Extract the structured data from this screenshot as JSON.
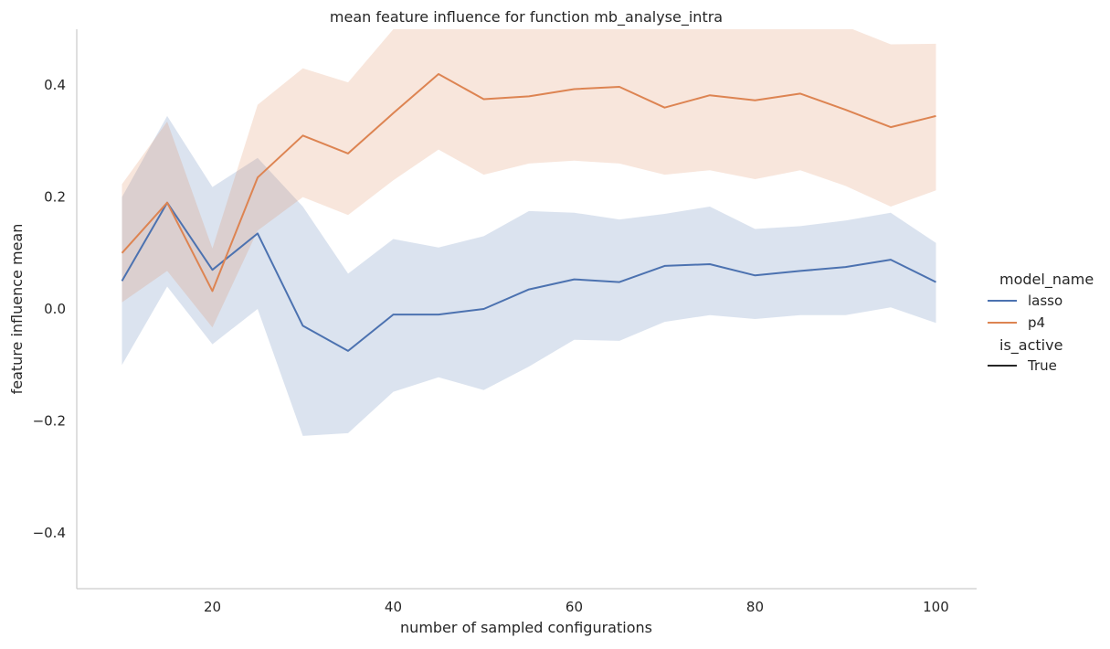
{
  "chart_data": {
    "type": "line",
    "title": "mean feature influence for function mb_analyse_intra",
    "xlabel": "number of sampled configurations",
    "ylabel": "feature influence mean",
    "xlim": [
      5,
      104.5
    ],
    "ylim": [
      -0.5,
      0.5
    ],
    "xticks": [
      20,
      40,
      60,
      80,
      100
    ],
    "yticks": [
      -0.4,
      -0.2,
      0.0,
      0.2,
      0.4
    ],
    "ytick_labels": [
      "−0.4",
      "−0.2",
      "0.0",
      "0.2",
      "0.4"
    ],
    "grid": false,
    "x": [
      10,
      15,
      20,
      25,
      30,
      35,
      40,
      45,
      50,
      55,
      60,
      65,
      70,
      75,
      80,
      85,
      90,
      95,
      100
    ],
    "series": [
      {
        "name": "lasso",
        "color": "#4c72b0",
        "values": [
          0.05,
          0.19,
          0.07,
          0.135,
          -0.03,
          -0.075,
          -0.01,
          -0.01,
          0.0,
          0.035,
          0.053,
          0.048,
          0.077,
          0.08,
          0.06,
          0.068,
          0.075,
          0.088,
          0.048
        ],
        "ci_lower": [
          -0.1,
          0.04,
          -0.063,
          0.0,
          -0.227,
          -0.222,
          -0.148,
          -0.122,
          -0.145,
          -0.103,
          -0.055,
          -0.057,
          -0.023,
          -0.011,
          -0.018,
          -0.011,
          -0.011,
          0.003,
          -0.025
        ],
        "ci_upper": [
          0.2,
          0.345,
          0.218,
          0.27,
          0.183,
          0.063,
          0.125,
          0.11,
          0.13,
          0.175,
          0.172,
          0.16,
          0.17,
          0.183,
          0.143,
          0.148,
          0.158,
          0.172,
          0.118
        ]
      },
      {
        "name": "p4",
        "color": "#dd8452",
        "values": [
          0.1,
          0.19,
          0.032,
          0.235,
          0.31,
          0.278,
          0.35,
          0.42,
          0.375,
          0.38,
          0.393,
          0.397,
          0.36,
          0.382,
          0.373,
          0.385,
          0.356,
          0.325,
          0.345
        ],
        "ci_lower": [
          0.012,
          0.068,
          -0.033,
          0.14,
          0.2,
          0.168,
          0.23,
          0.285,
          0.24,
          0.26,
          0.265,
          0.26,
          0.24,
          0.248,
          0.232,
          0.248,
          0.22,
          0.183,
          0.212
        ],
        "ci_upper": [
          0.223,
          0.335,
          0.108,
          0.365,
          0.43,
          0.405,
          0.5,
          0.53,
          0.52,
          0.53,
          0.53,
          0.525,
          0.525,
          0.525,
          0.525,
          0.525,
          0.505,
          0.473,
          0.474
        ]
      }
    ],
    "legend": {
      "placement": "right",
      "hue_title": "model_name",
      "style_title": "is_active",
      "style_entries": [
        {
          "name": "True",
          "color": "#262626"
        }
      ]
    }
  }
}
